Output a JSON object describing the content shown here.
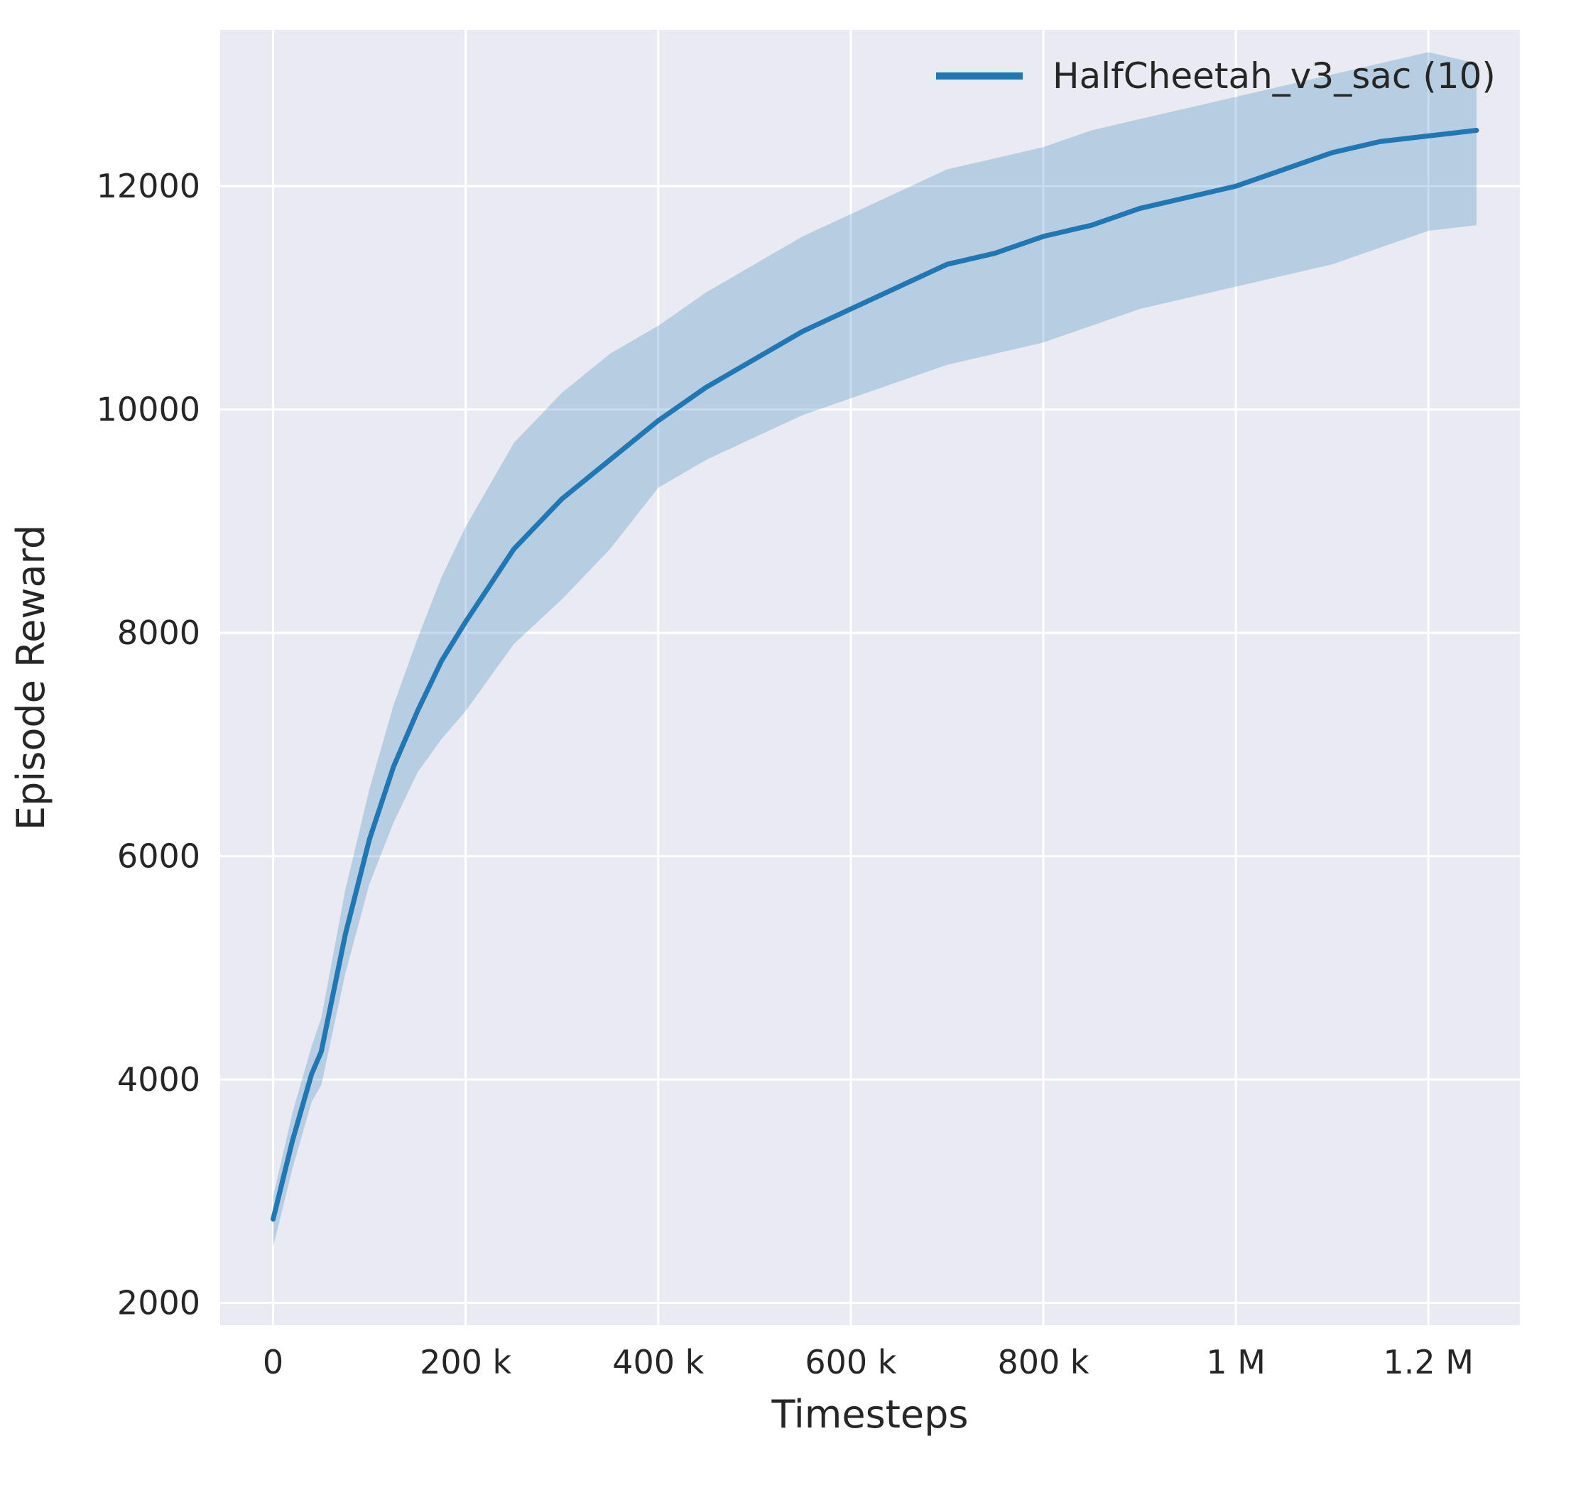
{
  "chart_data": {
    "type": "line",
    "title": "",
    "xlabel": "Timesteps",
    "ylabel": "Episode Reward",
    "grid": true,
    "legend_position": "upper right",
    "xlim": [
      -55000,
      1295000
    ],
    "ylim": [
      1800,
      13400
    ],
    "x_ticks": [
      {
        "value": 0,
        "label": "0"
      },
      {
        "value": 200000,
        "label": "200 k"
      },
      {
        "value": 400000,
        "label": "400 k"
      },
      {
        "value": 600000,
        "label": "600 k"
      },
      {
        "value": 800000,
        "label": "800 k"
      },
      {
        "value": 1000000,
        "label": "1 M"
      },
      {
        "value": 1200000,
        "label": "1.2 M"
      }
    ],
    "y_ticks": [
      {
        "value": 2000,
        "label": "2000"
      },
      {
        "value": 4000,
        "label": "4000"
      },
      {
        "value": 6000,
        "label": "6000"
      },
      {
        "value": 8000,
        "label": "8000"
      },
      {
        "value": 10000,
        "label": "10000"
      },
      {
        "value": 12000,
        "label": "12000"
      }
    ],
    "colors": {
      "line": "#1f77b4",
      "band": "#1f77b4",
      "band_opacity": 0.25,
      "plot_background": "#eaeaf2",
      "figure_background": "#ffffff",
      "grid": "#ffffff",
      "text": "#262626"
    },
    "series": [
      {
        "name": "HalfCheetah_v3_sac (10)",
        "x": [
          0,
          20000,
          40000,
          50000,
          75000,
          100000,
          125000,
          150000,
          175000,
          200000,
          250000,
          300000,
          350000,
          400000,
          450000,
          500000,
          550000,
          600000,
          650000,
          700000,
          750000,
          800000,
          850000,
          900000,
          950000,
          1000000,
          1050000,
          1100000,
          1150000,
          1200000,
          1250000
        ],
        "mean": [
          2750,
          3450,
          4050,
          4250,
          5300,
          6150,
          6800,
          7300,
          7750,
          8100,
          8750,
          9200,
          9550,
          9900,
          10200,
          10450,
          10700,
          10900,
          11100,
          11300,
          11400,
          11550,
          11650,
          11800,
          11900,
          12000,
          12150,
          12300,
          12400,
          12450,
          12500
        ],
        "band_lower": [
          2500,
          3200,
          3800,
          3950,
          4950,
          5750,
          6300,
          6750,
          7050,
          7300,
          7900,
          8300,
          8750,
          9300,
          9550,
          9750,
          9950,
          10100,
          10250,
          10400,
          10500,
          10600,
          10750,
          10900,
          11000,
          11100,
          11200,
          11300,
          11450,
          11600,
          11650
        ],
        "band_upper": [
          2950,
          3700,
          4300,
          4550,
          5700,
          6600,
          7350,
          7950,
          8500,
          8950,
          9700,
          10150,
          10500,
          10750,
          11050,
          11300,
          11550,
          11750,
          11950,
          12150,
          12250,
          12350,
          12500,
          12600,
          12700,
          12800,
          12900,
          13000,
          13100,
          13200,
          13100
        ]
      }
    ]
  }
}
